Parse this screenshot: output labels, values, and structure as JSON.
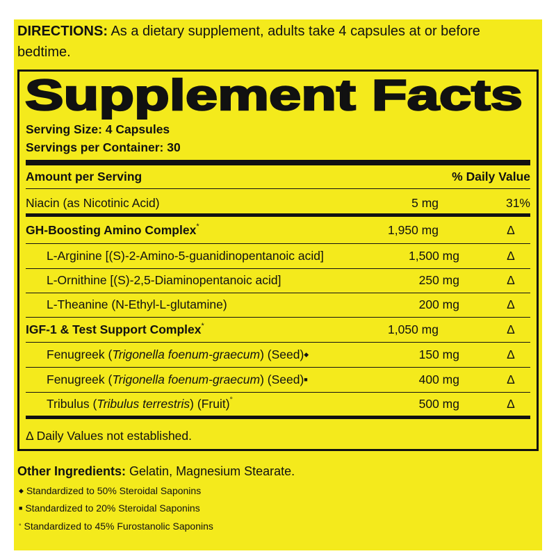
{
  "directions": {
    "label": "DIRECTIONS:",
    "text": "As a dietary supplement, adults take 4 capsules at or before bedtime."
  },
  "facts": {
    "title": "Supplement Facts",
    "serving_size": "Serving Size: 4 Capsules",
    "servings_per_container": "Servings per Container: 30",
    "header": {
      "amount": "Amount per Serving",
      "dv": "% Daily Value"
    },
    "rows": [
      {
        "name": "Niacin (as Nicotinic Acid)",
        "amount": "5 mg",
        "dv": "31%"
      },
      {
        "name": "GH-Boosting Amino Complex",
        "mark": "*",
        "amount": "1,950 mg",
        "dv": "Δ"
      },
      {
        "name": "L-Arginine [(S)-2-Amino-5-guanidinopentanoic acid]",
        "amount": "1,500 mg",
        "dv": "Δ"
      },
      {
        "name": "L-Ornithine [(S)-2,5-Diaminopentanoic acid]",
        "amount": "250 mg",
        "dv": "Δ"
      },
      {
        "name": "L-Theanine (N-Ethyl-L-glutamine)",
        "amount": "200 mg",
        "dv": "Δ"
      },
      {
        "name": "IGF-1 & Test Support Complex",
        "mark": "*",
        "amount": "1,050 mg",
        "dv": "Δ"
      },
      {
        "name": "Fenugreek (",
        "latin": "Trigonella foenum-graecum",
        "name_end": ") (Seed)",
        "mark": "◆",
        "amount": "150 mg",
        "dv": "Δ"
      },
      {
        "name": "Fenugreek (",
        "latin": "Trigonella foenum-graecum",
        "name_end": ") (Seed)",
        "mark": "■",
        "amount": "400 mg",
        "dv": "Δ"
      },
      {
        "name": "Tribulus (",
        "latin": "Tribulus terrestris",
        "name_end": ") (Fruit)",
        "mark": "°",
        "amount": "500 mg",
        "dv": "Δ"
      }
    ],
    "footnote": "Δ Daily Values not established."
  },
  "other_ingredients": {
    "label": "Other Ingredients:",
    "text": "Gelatin, Magnesium Stearate."
  },
  "footnotes": [
    {
      "symbol": "◆",
      "text": "Standardized to 50% Steroidal Saponins"
    },
    {
      "symbol": "■",
      "text": "Standardized to 20% Steroidal Saponins"
    },
    {
      "symbol": "°",
      "text": "Standardized to 45% Furostanolic Saponins"
    }
  ]
}
